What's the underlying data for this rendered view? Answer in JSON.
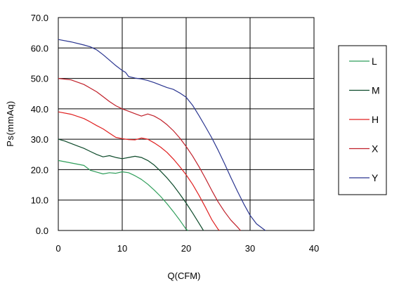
{
  "chart_data": {
    "type": "line",
    "title": "",
    "xlabel": "Q(CFM)",
    "ylabel": "Ps(mmAq)",
    "xlim": [
      0,
      40
    ],
    "ylim": [
      0,
      70
    ],
    "x_ticks": [
      "0",
      "10",
      "20",
      "30",
      "40"
    ],
    "y_ticks": [
      "0.0",
      "10.0",
      "20.0",
      "30.0",
      "40.0",
      "50.0",
      "60.0",
      "70.0"
    ],
    "grid": true,
    "legend_position": "right",
    "series": [
      {
        "name": "L",
        "color": "#2f9e5a",
        "points": [
          [
            0,
            23.0
          ],
          [
            2,
            22.2
          ],
          [
            4,
            21.4
          ],
          [
            5,
            19.8
          ],
          [
            6,
            19.2
          ],
          [
            7,
            18.6
          ],
          [
            8,
            19.0
          ],
          [
            9,
            18.8
          ],
          [
            10,
            19.3
          ],
          [
            11,
            19.0
          ],
          [
            12,
            18.0
          ],
          [
            13,
            16.8
          ],
          [
            14,
            15.2
          ],
          [
            15,
            13.3
          ],
          [
            16,
            11.2
          ],
          [
            17,
            8.8
          ],
          [
            18,
            6.2
          ],
          [
            19,
            3.4
          ],
          [
            20,
            0.4
          ],
          [
            20.3,
            0.0
          ]
        ]
      },
      {
        "name": "M",
        "color": "#0d4a2a",
        "points": [
          [
            0,
            30.0
          ],
          [
            1,
            29.4
          ],
          [
            2,
            28.6
          ],
          [
            3,
            27.8
          ],
          [
            4,
            27.0
          ],
          [
            5,
            26.0
          ],
          [
            6,
            25.0
          ],
          [
            7,
            24.2
          ],
          [
            8,
            24.6
          ],
          [
            9,
            24.0
          ],
          [
            10,
            23.6
          ],
          [
            11,
            24.0
          ],
          [
            12,
            24.4
          ],
          [
            13,
            24.0
          ],
          [
            14,
            23.0
          ],
          [
            15,
            21.5
          ],
          [
            16,
            19.5
          ],
          [
            17,
            17.3
          ],
          [
            18,
            14.8
          ],
          [
            19,
            12.0
          ],
          [
            20,
            9.0
          ],
          [
            21,
            5.8
          ],
          [
            22,
            2.4
          ],
          [
            22.7,
            0.0
          ]
        ]
      },
      {
        "name": "H",
        "color": "#e02020",
        "points": [
          [
            0,
            39.0
          ],
          [
            2,
            38.2
          ],
          [
            4,
            36.8
          ],
          [
            5,
            35.7
          ],
          [
            6,
            34.5
          ],
          [
            7,
            33.4
          ],
          [
            8,
            32.0
          ],
          [
            9,
            30.6
          ],
          [
            10,
            30.2
          ],
          [
            11,
            29.9
          ],
          [
            12,
            29.8
          ],
          [
            13,
            30.4
          ],
          [
            14,
            30.0
          ],
          [
            15,
            28.8
          ],
          [
            16,
            27.4
          ],
          [
            17,
            25.7
          ],
          [
            18,
            23.5
          ],
          [
            19,
            21.0
          ],
          [
            20,
            18.3
          ],
          [
            21,
            15.2
          ],
          [
            22,
            11.6
          ],
          [
            23,
            7.7
          ],
          [
            24,
            3.6
          ],
          [
            25,
            0.4
          ],
          [
            25.2,
            0.0
          ]
        ]
      },
      {
        "name": "X",
        "color": "#c0202a",
        "points": [
          [
            0,
            50.0
          ],
          [
            2,
            49.5
          ],
          [
            4,
            48.0
          ],
          [
            5,
            46.8
          ],
          [
            6,
            45.6
          ],
          [
            7,
            44.0
          ],
          [
            8,
            42.4
          ],
          [
            9,
            41.0
          ],
          [
            10,
            40.0
          ],
          [
            11,
            39.2
          ],
          [
            12,
            38.4
          ],
          [
            13,
            37.6
          ],
          [
            14,
            38.3
          ],
          [
            15,
            37.6
          ],
          [
            16,
            36.4
          ],
          [
            17,
            34.8
          ],
          [
            18,
            32.8
          ],
          [
            19,
            30.4
          ],
          [
            20,
            27.6
          ],
          [
            21,
            24.5
          ],
          [
            22,
            21.0
          ],
          [
            23,
            17.2
          ],
          [
            24,
            13.2
          ],
          [
            25,
            9.4
          ],
          [
            26,
            6.2
          ],
          [
            27,
            3.4
          ],
          [
            28,
            1.2
          ],
          [
            28.5,
            0.0
          ]
        ]
      },
      {
        "name": "Y",
        "color": "#2a3590",
        "points": [
          [
            0,
            62.8
          ],
          [
            2,
            62.0
          ],
          [
            4,
            61.0
          ],
          [
            5,
            60.4
          ],
          [
            6,
            59.4
          ],
          [
            7,
            57.8
          ],
          [
            8,
            56.0
          ],
          [
            9,
            54.2
          ],
          [
            10,
            52.6
          ],
          [
            10.5,
            52.0
          ],
          [
            11,
            50.6
          ],
          [
            12,
            50.1
          ],
          [
            13,
            49.8
          ],
          [
            14,
            49.3
          ],
          [
            15,
            48.6
          ],
          [
            16,
            47.8
          ],
          [
            17,
            47.0
          ],
          [
            18,
            46.4
          ],
          [
            19,
            45.2
          ],
          [
            20,
            43.8
          ],
          [
            21,
            41.2
          ],
          [
            22,
            37.8
          ],
          [
            23,
            34.2
          ],
          [
            24,
            30.5
          ],
          [
            25,
            26.4
          ],
          [
            26,
            22.0
          ],
          [
            27,
            17.4
          ],
          [
            28,
            13.0
          ],
          [
            29,
            8.8
          ],
          [
            30,
            5.0
          ],
          [
            31,
            2.2
          ],
          [
            32,
            0.6
          ],
          [
            32.4,
            0.0
          ]
        ]
      }
    ]
  }
}
